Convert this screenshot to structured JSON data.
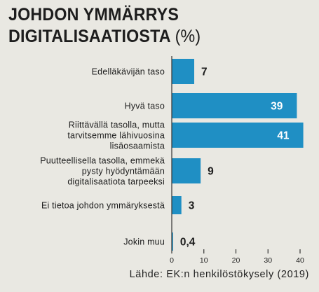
{
  "title": {
    "line1": "JOHDON YMMÄRRYS",
    "line2": "DIGITALISAATIOSTA",
    "unit": "(%)"
  },
  "source": "Lähde: EK:n henkilöstökysely (2019)",
  "colors": {
    "bar": "#1f8fc4",
    "background": "#e9e8e2",
    "text": "#1d1d1d",
    "axis": "#333333"
  },
  "chart_data": {
    "type": "bar",
    "orientation": "horizontal",
    "categories": [
      [
        "Edelläkävijän taso"
      ],
      [
        "Hyvä taso"
      ],
      [
        "Riittävällä tasolla, mutta",
        "tarvitsemme lähivuosina",
        "lisäosaamista"
      ],
      [
        "Puutteellisella tasolla, emmekä",
        "pysty hyödyntämään",
        "digitalisaatiota tarpeeksi"
      ],
      [
        "Ei tietoa johdon ymmäryksestä"
      ],
      [
        "Jokin muu"
      ]
    ],
    "values": [
      7,
      39,
      41,
      9,
      3,
      0.4
    ],
    "value_labels": [
      "7",
      "39",
      "41",
      "9",
      "3",
      "0,4"
    ],
    "xticks": [
      0,
      10,
      20,
      30,
      40
    ],
    "xlim": [
      0,
      40
    ],
    "grid": false
  }
}
